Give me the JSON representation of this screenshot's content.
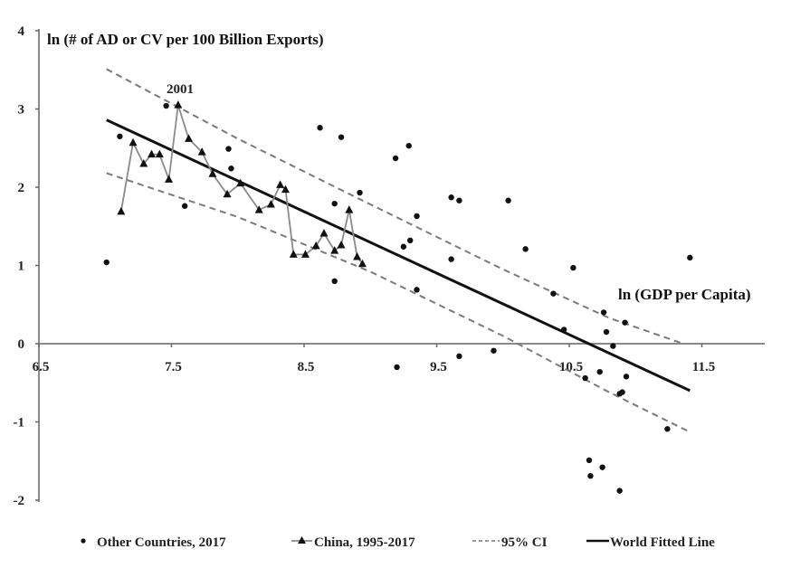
{
  "chart_data": {
    "type": "scatter",
    "title": "",
    "ylabel": "ln (# of AD or CV per 100 Billion Exports)",
    "xlabel": "ln (GDP per Capita)",
    "xlim": [
      6.5,
      11.9
    ],
    "ylim": [
      -2,
      4
    ],
    "x_ticks": [
      6.5,
      7.5,
      8.5,
      9.5,
      10.5,
      11.5
    ],
    "x_tick_labels": [
      "6.5",
      "7.5",
      "8.5",
      "9.5",
      "10.5",
      "11.5"
    ],
    "y_ticks": [
      -2,
      -1,
      0,
      1,
      2,
      3,
      4
    ],
    "y_tick_labels": [
      "-2",
      "-1",
      "0",
      "1",
      "2",
      "3",
      "4"
    ],
    "grid": false,
    "legend_position": "bottom",
    "annotations": [
      {
        "text": "2001",
        "x": 7.55,
        "y": 3.05
      }
    ],
    "series": [
      {
        "name": "Other Countries, 2017",
        "style": "dots",
        "points": [
          [
            7.01,
            1.04
          ],
          [
            7.11,
            2.65
          ],
          [
            7.46,
            3.04
          ],
          [
            7.6,
            1.76
          ],
          [
            7.93,
            2.49
          ],
          [
            7.95,
            2.24
          ],
          [
            8.62,
            2.76
          ],
          [
            8.78,
            2.64
          ],
          [
            8.73,
            1.79
          ],
          [
            8.92,
            1.93
          ],
          [
            8.73,
            0.8
          ],
          [
            9.19,
            2.37
          ],
          [
            9.29,
            2.53
          ],
          [
            9.25,
            1.24
          ],
          [
            9.3,
            1.32
          ],
          [
            9.35,
            1.63
          ],
          [
            9.35,
            0.69
          ],
          [
            9.2,
            -0.3
          ],
          [
            9.61,
            1.87
          ],
          [
            9.67,
            1.83
          ],
          [
            9.61,
            1.08
          ],
          [
            9.67,
            -0.16
          ],
          [
            9.93,
            -0.09
          ],
          [
            10.04,
            1.83
          ],
          [
            10.17,
            1.21
          ],
          [
            10.38,
            0.64
          ],
          [
            10.53,
            0.97
          ],
          [
            10.46,
            0.18
          ],
          [
            10.76,
            0.4
          ],
          [
            10.92,
            0.27
          ],
          [
            10.78,
            0.15
          ],
          [
            10.83,
            -0.03
          ],
          [
            10.62,
            -0.44
          ],
          [
            10.73,
            -0.36
          ],
          [
            10.93,
            -0.42
          ],
          [
            10.88,
            -0.64
          ],
          [
            10.9,
            -0.62
          ],
          [
            11.24,
            -1.09
          ],
          [
            11.41,
            1.1
          ],
          [
            10.65,
            -1.49
          ],
          [
            10.75,
            -1.58
          ],
          [
            10.66,
            -1.69
          ],
          [
            10.88,
            -1.88
          ]
        ]
      },
      {
        "name": "China, 1995-2017",
        "style": "line-triangle",
        "points": [
          [
            7.12,
            1.69
          ],
          [
            7.21,
            2.57
          ],
          [
            7.29,
            2.3
          ],
          [
            7.35,
            2.42
          ],
          [
            7.41,
            2.42
          ],
          [
            7.48,
            2.1
          ],
          [
            7.55,
            3.05
          ],
          [
            7.63,
            2.62
          ],
          [
            7.73,
            2.45
          ],
          [
            7.81,
            2.17
          ],
          [
            7.92,
            1.91
          ],
          [
            8.02,
            2.05
          ],
          [
            8.16,
            1.71
          ],
          [
            8.25,
            1.78
          ],
          [
            8.32,
            2.03
          ],
          [
            8.36,
            1.97
          ],
          [
            8.42,
            1.14
          ],
          [
            8.51,
            1.14
          ],
          [
            8.59,
            1.25
          ],
          [
            8.65,
            1.41
          ],
          [
            8.73,
            1.19
          ],
          [
            8.78,
            1.26
          ],
          [
            8.84,
            1.71
          ],
          [
            8.9,
            1.11
          ],
          [
            8.94,
            1.02
          ]
        ]
      },
      {
        "name": "95% CI",
        "style": "dashed",
        "upper": [
          [
            7.01,
            3.51
          ],
          [
            8.0,
            2.62
          ],
          [
            9.0,
            1.78
          ],
          [
            10.0,
            0.95
          ],
          [
            10.8,
            0.33
          ],
          [
            11.36,
            0.0
          ]
        ],
        "lower": [
          [
            7.01,
            2.18
          ],
          [
            8.0,
            1.62
          ],
          [
            9.0,
            0.92
          ],
          [
            10.0,
            0.1
          ],
          [
            10.8,
            -0.62
          ],
          [
            11.41,
            -1.13
          ]
        ]
      },
      {
        "name": "World Fitted Line",
        "style": "solid",
        "points": [
          [
            7.01,
            2.86
          ],
          [
            11.41,
            -0.6
          ]
        ]
      }
    ]
  }
}
